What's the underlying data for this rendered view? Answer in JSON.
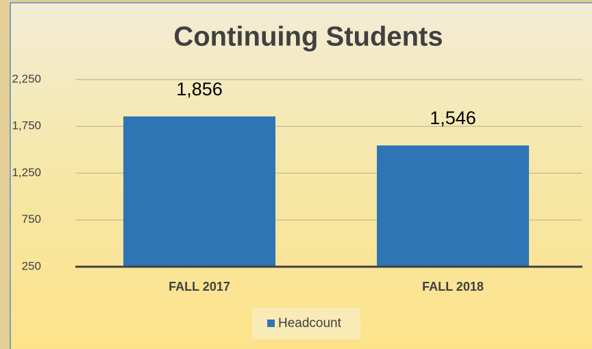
{
  "chart_data": {
    "type": "bar",
    "title": "Continuing Students",
    "categories": [
      "FALL 2017",
      "FALL 2018"
    ],
    "series": [
      {
        "name": "Headcount",
        "color": "#2e75b6",
        "values": [
          1856,
          1546
        ],
        "value_labels": [
          "1,856",
          "1,546"
        ]
      }
    ],
    "ylim": [
      250,
      2250
    ],
    "yticks": [
      250,
      {
        "value": 750,
        "label": "750"
      },
      {
        "value": 1250,
        "label": "1,250"
      },
      {
        "value": 1750,
        "label": "1,750"
      },
      {
        "value": 2250,
        "label": "2,250"
      }
    ],
    "grid": true,
    "legend": "bottom"
  }
}
